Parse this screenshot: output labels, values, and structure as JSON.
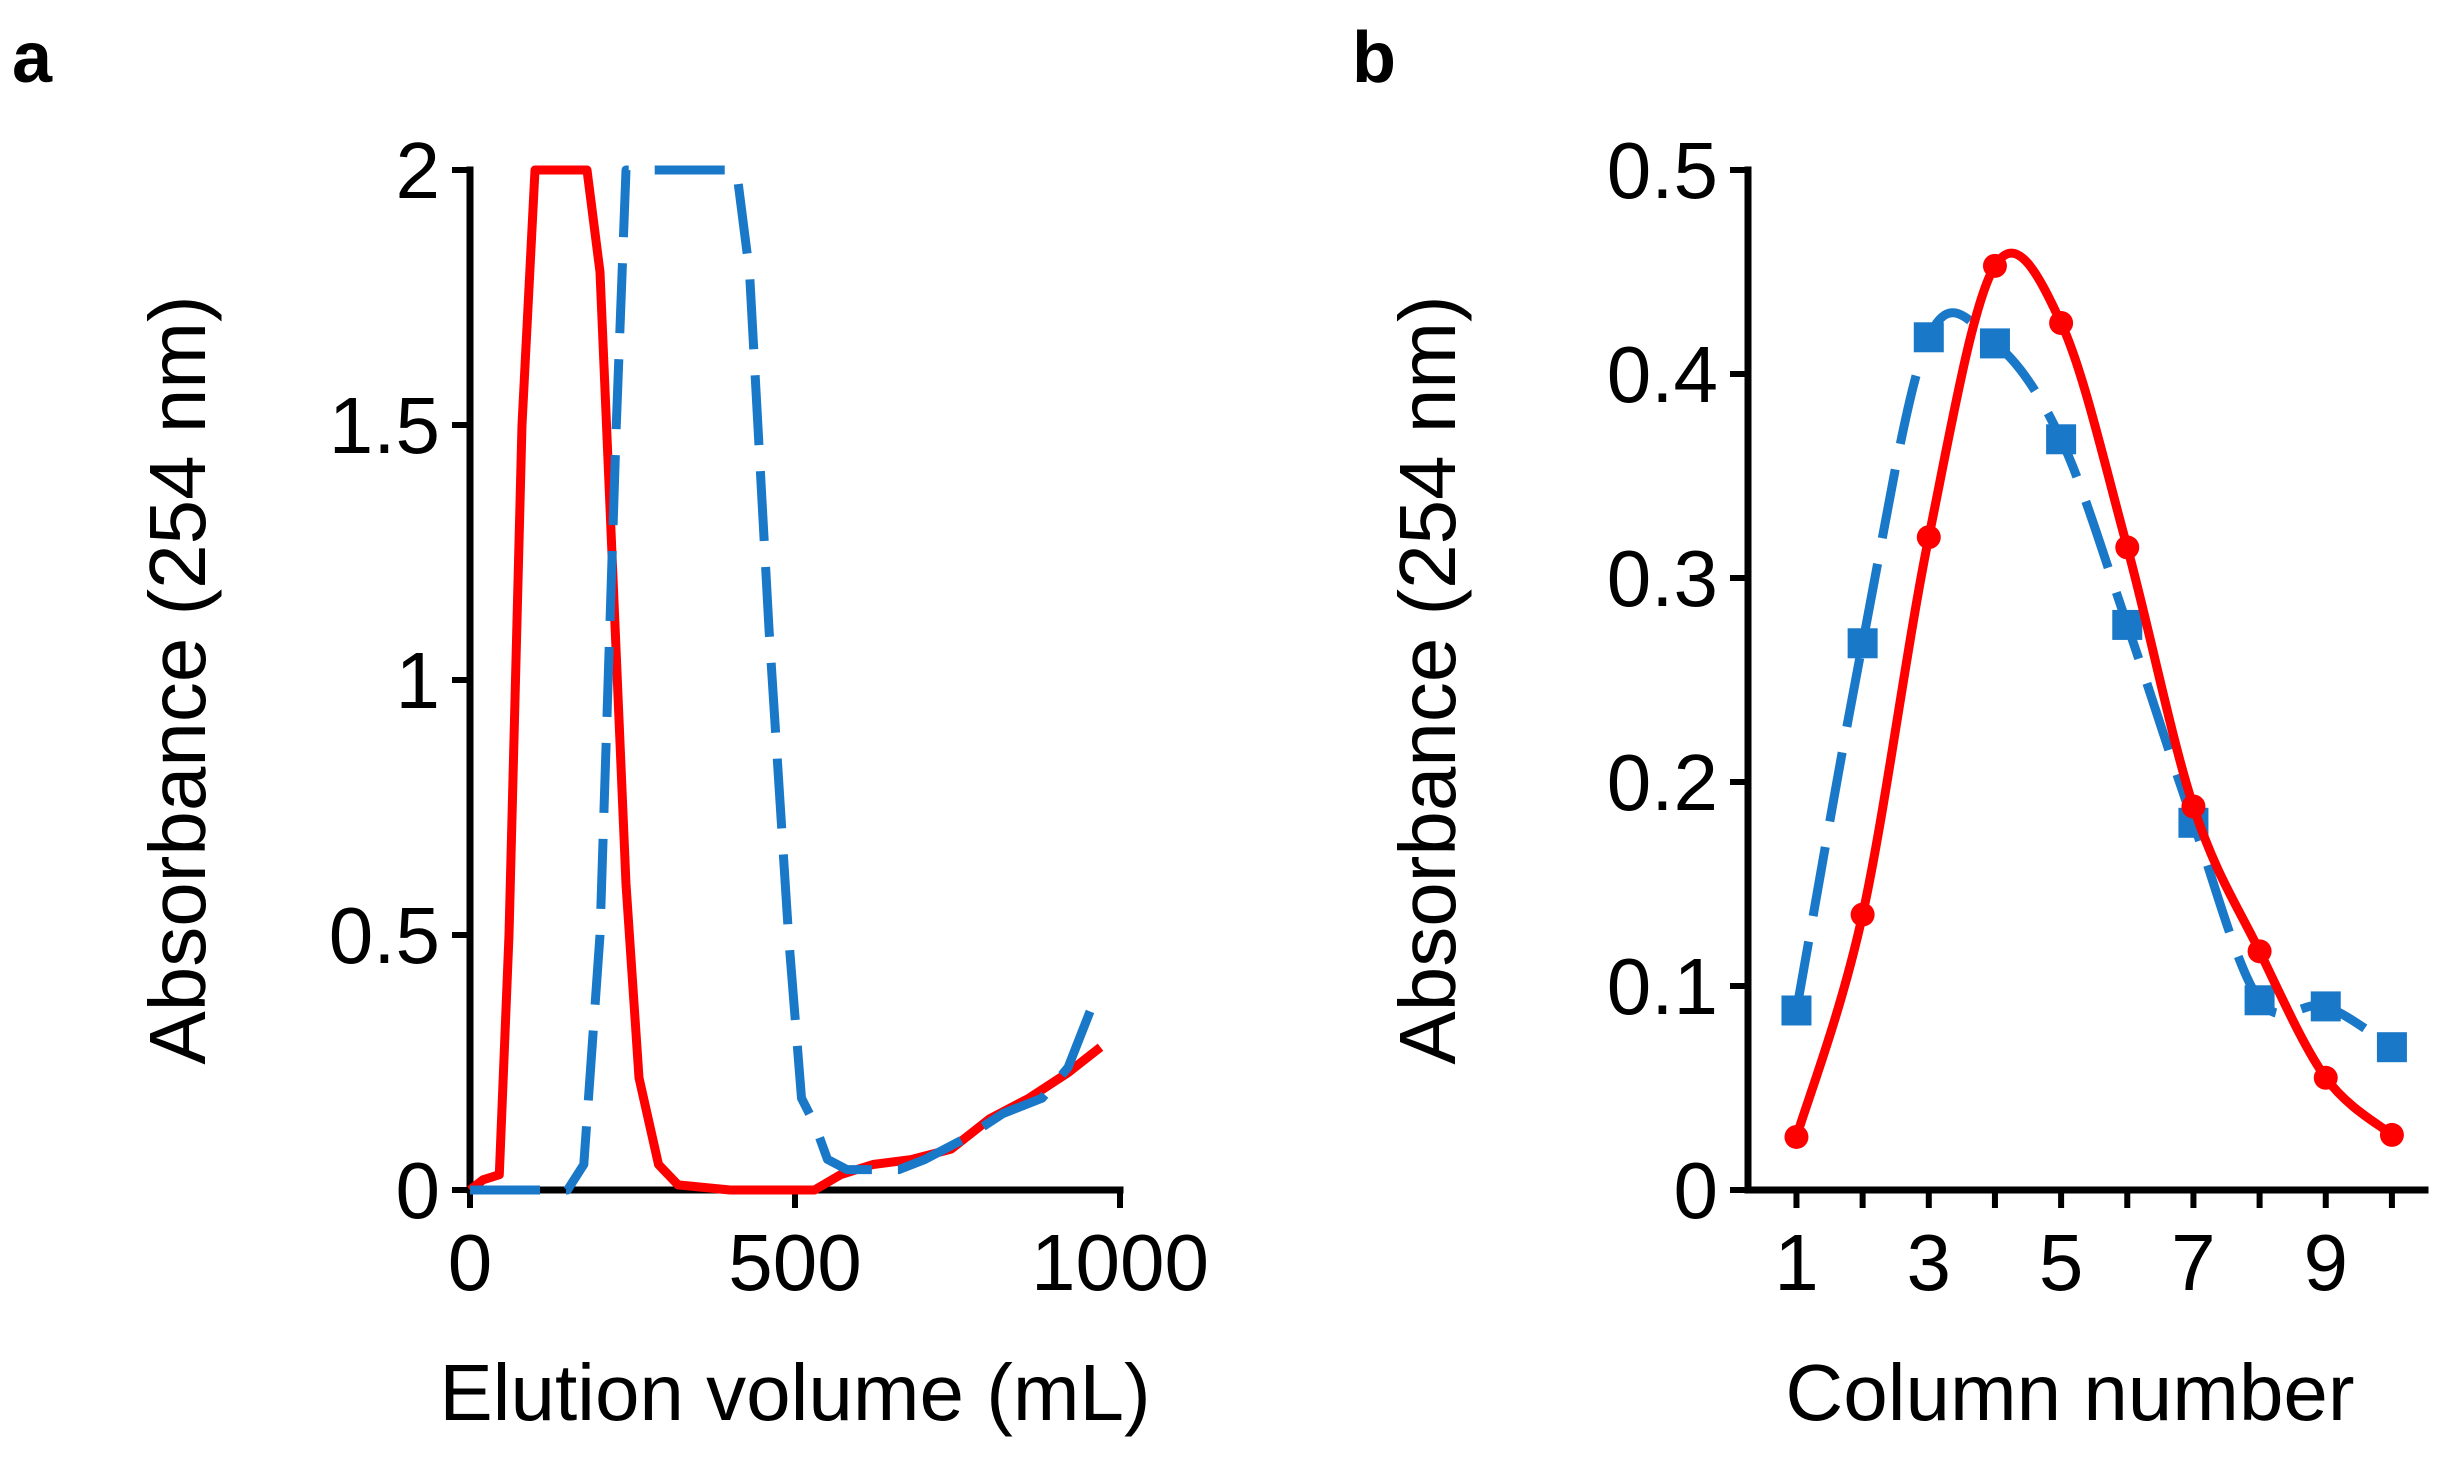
{
  "colors": {
    "red": "#ff0000",
    "blue": "#1a78c8",
    "axis": "#000000"
  },
  "chart_data": [
    {
      "panel_label": "a",
      "type": "line",
      "xlabel": "Elution volume (mL)",
      "ylabel": "Absorbance (254 nm)",
      "xlim": [
        0,
        1000
      ],
      "ylim": [
        0,
        2
      ],
      "xticks": [
        0,
        500,
        1000
      ],
      "xtick_labels": [
        "0",
        "500",
        "1000"
      ],
      "yticks": [
        0,
        0.5,
        1,
        1.5,
        2
      ],
      "ytick_labels": [
        "0",
        "0.5",
        "1",
        "1.5",
        "2"
      ],
      "grid": false,
      "series": [
        {
          "color": "red",
          "style": "solid",
          "markers": false,
          "points": [
            [
              0,
              0.0
            ],
            [
              20,
              0.02
            ],
            [
              45,
              0.03
            ],
            [
              60,
              0.5
            ],
            [
              80,
              1.5
            ],
            [
              100,
              2.0
            ],
            [
              180,
              2.0
            ],
            [
              200,
              1.8
            ],
            [
              220,
              1.2
            ],
            [
              240,
              0.6
            ],
            [
              260,
              0.22
            ],
            [
              290,
              0.05
            ],
            [
              320,
              0.01
            ],
            [
              400,
              0.0
            ],
            [
              500,
              0.0
            ],
            [
              530,
              0.0
            ],
            [
              570,
              0.03
            ],
            [
              620,
              0.05
            ],
            [
              680,
              0.06
            ],
            [
              740,
              0.08
            ],
            [
              800,
              0.14
            ],
            [
              860,
              0.18
            ],
            [
              920,
              0.23
            ],
            [
              970,
              0.28
            ]
          ]
        },
        {
          "color": "blue",
          "style": "dashed",
          "markers": false,
          "points": [
            [
              0,
              0.0
            ],
            [
              150,
              0.0
            ],
            [
              175,
              0.05
            ],
            [
              200,
              0.5
            ],
            [
              225,
              1.5
            ],
            [
              240,
              2.0
            ],
            [
              410,
              2.0
            ],
            [
              430,
              1.8
            ],
            [
              460,
              1.1
            ],
            [
              490,
              0.5
            ],
            [
              510,
              0.18
            ],
            [
              530,
              0.13
            ],
            [
              550,
              0.06
            ],
            [
              580,
              0.04
            ],
            [
              620,
              0.04
            ],
            [
              660,
              0.04
            ],
            [
              700,
              0.06
            ],
            [
              760,
              0.1
            ],
            [
              820,
              0.15
            ],
            [
              880,
              0.18
            ],
            [
              920,
              0.24
            ],
            [
              960,
              0.37
            ]
          ]
        }
      ]
    },
    {
      "panel_label": "b",
      "type": "line",
      "xlabel": "Column number",
      "ylabel": "Absorbance (254 nm)",
      "xlim": [
        0.6,
        10.5
      ],
      "ylim": [
        0,
        0.5
      ],
      "xticks": [
        1,
        3,
        5,
        7,
        9
      ],
      "xtick_labels": [
        "1",
        "3",
        "5",
        "7",
        "9"
      ],
      "yticks": [
        0,
        0.1,
        0.2,
        0.3,
        0.4,
        0.5
      ],
      "ytick_labels": [
        "0",
        "0.1",
        "0.2",
        "0.3",
        "0.4",
        "0.5"
      ],
      "grid": false,
      "series": [
        {
          "color": "blue",
          "style": "dashed",
          "marker": "square",
          "x": [
            1,
            2,
            3,
            4,
            5,
            6,
            7,
            8,
            9,
            10
          ],
          "values": [
            0.088,
            0.268,
            0.418,
            0.415,
            0.368,
            0.277,
            0.18,
            0.093,
            0.09,
            0.07
          ]
        },
        {
          "color": "red",
          "style": "solid",
          "marker": "circle",
          "x": [
            1,
            2,
            3,
            4,
            5,
            6,
            7,
            8,
            9,
            10
          ],
          "values": [
            0.026,
            0.135,
            0.32,
            0.453,
            0.425,
            0.315,
            0.188,
            0.117,
            0.055,
            0.027
          ]
        }
      ]
    }
  ]
}
